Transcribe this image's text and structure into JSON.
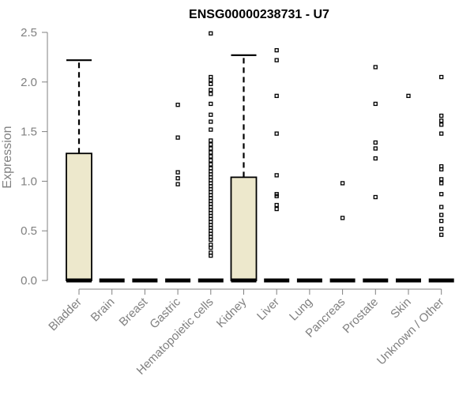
{
  "chart_data": {
    "type": "box",
    "title": "ENSG00000238731 - U7",
    "xlabel": "",
    "ylabel": "Expression",
    "ylim": [
      0,
      2.5
    ],
    "yticks": [
      "0.0",
      "0.5",
      "1.0",
      "1.5",
      "2.0",
      "2.5"
    ],
    "grid": false,
    "box_fill": "#ede8cc",
    "categories": [
      "Bladder",
      "Brain",
      "Breast",
      "Gastric",
      "Hematopoietic cells",
      "Kidney",
      "Liver",
      "Lung",
      "Pancreas",
      "Prostate",
      "Skin",
      "Unknown / Other"
    ],
    "boxes": [
      {
        "q1": 0,
        "median": 0,
        "q3": 1.28,
        "whisker_low": 0,
        "whisker_high": 2.22
      },
      {
        "q1": 0,
        "median": 0,
        "q3": 0,
        "whisker_low": 0,
        "whisker_high": 0
      },
      {
        "q1": 0,
        "median": 0,
        "q3": 0,
        "whisker_low": 0,
        "whisker_high": 0
      },
      {
        "q1": 0,
        "median": 0,
        "q3": 0,
        "whisker_low": 0,
        "whisker_high": 0
      },
      {
        "q1": 0,
        "median": 0,
        "q3": 0,
        "whisker_low": 0,
        "whisker_high": 0
      },
      {
        "q1": 0,
        "median": 0,
        "q3": 1.04,
        "whisker_low": 0,
        "whisker_high": 2.27
      },
      {
        "q1": 0,
        "median": 0,
        "q3": 0,
        "whisker_low": 0,
        "whisker_high": 0
      },
      {
        "q1": 0,
        "median": 0,
        "q3": 0,
        "whisker_low": 0,
        "whisker_high": 0
      },
      {
        "q1": 0,
        "median": 0,
        "q3": 0,
        "whisker_low": 0,
        "whisker_high": 0
      },
      {
        "q1": 0,
        "median": 0,
        "q3": 0,
        "whisker_low": 0,
        "whisker_high": 0
      },
      {
        "q1": 0,
        "median": 0,
        "q3": 0,
        "whisker_low": 0,
        "whisker_high": 0
      },
      {
        "q1": 0,
        "median": 0,
        "q3": 0,
        "whisker_low": 0,
        "whisker_high": 0
      }
    ],
    "outliers": [
      [],
      [],
      [],
      [
        0.97,
        1.03,
        1.09,
        1.44,
        1.77
      ],
      [
        0.25,
        0.28,
        0.33,
        0.36,
        0.41,
        0.44,
        0.47,
        0.5,
        0.53,
        0.56,
        0.59,
        0.62,
        0.65,
        0.68,
        0.71,
        0.74,
        0.77,
        0.8,
        0.83,
        0.86,
        0.89,
        0.92,
        0.95,
        0.98,
        1.01,
        1.04,
        1.07,
        1.1,
        1.13,
        1.17,
        1.21,
        1.25,
        1.29,
        1.33,
        1.37,
        1.41,
        1.52,
        1.6,
        1.67,
        1.78,
        1.88,
        1.92,
        1.98,
        2.02,
        2.05,
        2.49
      ],
      [],
      [
        0.72,
        0.76,
        0.85,
        0.87,
        1.06,
        1.48,
        1.86,
        2.22,
        2.32
      ],
      [],
      [
        0.63,
        0.98
      ],
      [
        0.84,
        1.23,
        1.33,
        1.39,
        1.78,
        2.15
      ],
      [
        1.86
      ],
      [
        0.46,
        0.52,
        0.6,
        0.66,
        0.74,
        0.87,
        0.98,
        1.02,
        1.12,
        1.15,
        1.48,
        1.57,
        1.61,
        1.66,
        2.05
      ]
    ]
  }
}
